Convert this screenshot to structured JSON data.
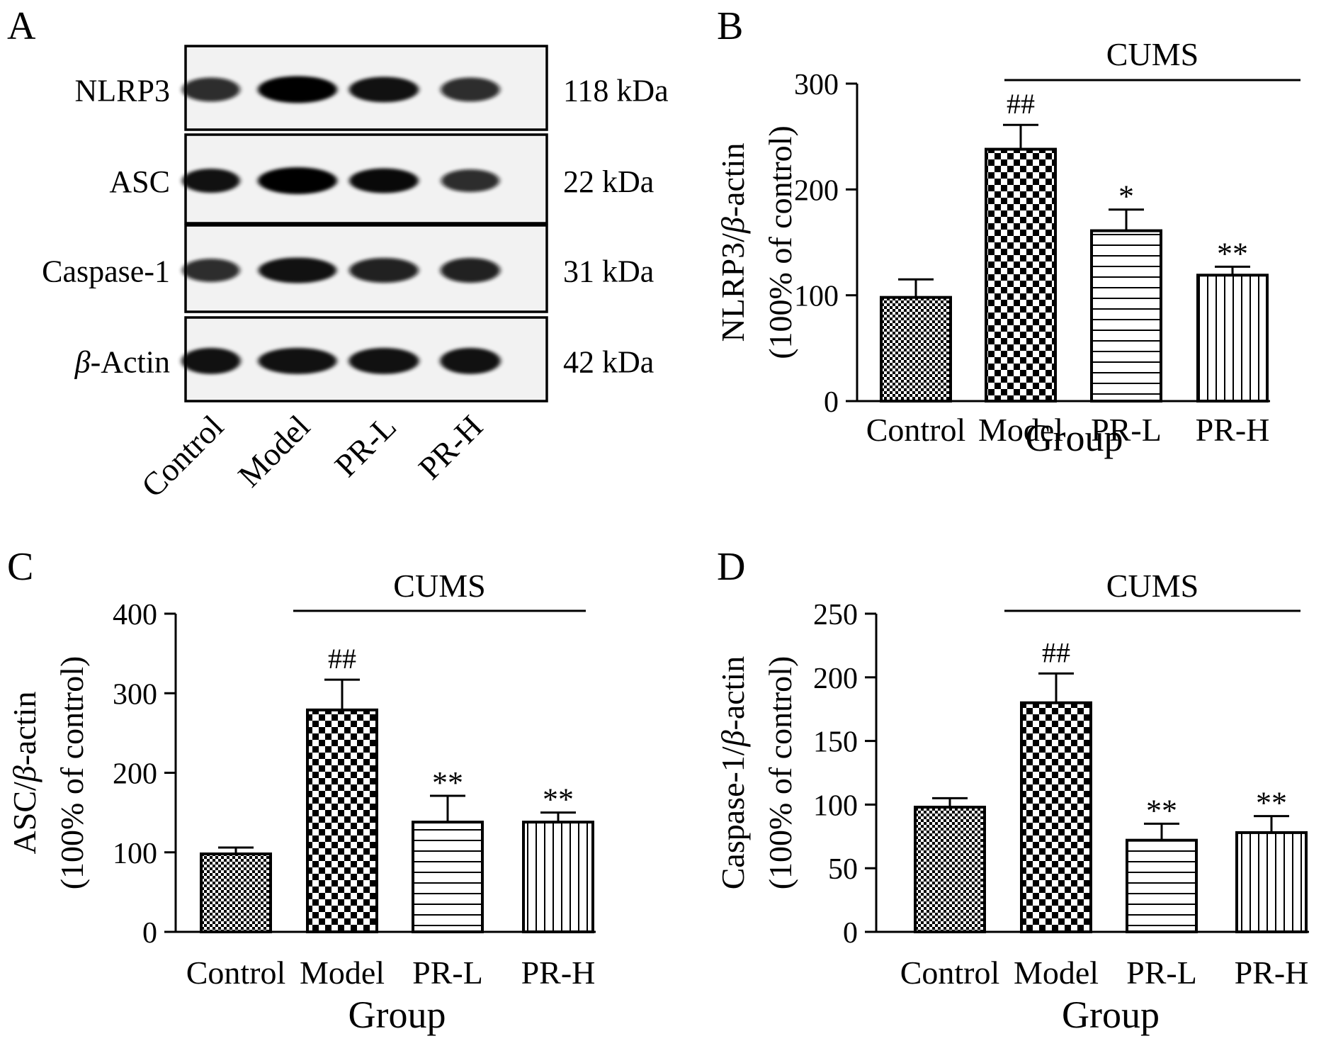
{
  "panels": {
    "A": {
      "letter": "A",
      "blots": [
        {
          "label_italic": "",
          "label": "NLRP3",
          "kda": "118 kDa",
          "intensity": [
            0.7,
            1.0,
            0.85,
            0.7
          ],
          "thickness": [
            0.8,
            1.0,
            0.9,
            0.8
          ]
        },
        {
          "label_italic": "",
          "label": "ASC",
          "kda": "22 kDa",
          "intensity": [
            0.85,
            1.0,
            0.9,
            0.7
          ],
          "thickness": [
            0.8,
            1.0,
            0.85,
            0.7
          ]
        },
        {
          "label_italic": "",
          "label": "Caspase-1",
          "kda": "31 kDa",
          "intensity": [
            0.7,
            0.85,
            0.8,
            0.8
          ],
          "thickness": [
            0.75,
            0.9,
            0.85,
            0.85
          ]
        },
        {
          "label_italic": "β",
          "label": "-Actin",
          "kda": "42 kDa",
          "intensity": [
            0.85,
            0.85,
            0.85,
            0.85
          ],
          "thickness": [
            0.95,
            0.95,
            0.95,
            0.95
          ]
        }
      ],
      "lanes": [
        "Control",
        "Model",
        "PR-L",
        "PR-H"
      ]
    }
  },
  "chart_data": [
    {
      "panel": "B",
      "type": "bar",
      "categories": [
        "Control",
        "Model",
        "PR-L",
        "PR-H"
      ],
      "values": [
        98,
        238,
        161,
        119
      ],
      "errors": [
        17,
        23,
        20,
        8
      ],
      "annotations": [
        "",
        "##",
        "*",
        "**"
      ],
      "bracket_label": "CUMS",
      "ylabel_prefix": "NLRP3/",
      "ylabel_italic": "β",
      "ylabel_suffix": "-actin",
      "ylabel_line2": "(100% of control)",
      "xlabel": "Group",
      "ylim": [
        0,
        300
      ],
      "yticks": [
        0,
        100,
        200,
        300
      ],
      "patterns": [
        "fine-check",
        "coarse-check",
        "horizontal-lines",
        "vertical-lines"
      ]
    },
    {
      "panel": "C",
      "type": "bar",
      "categories": [
        "Control",
        "Model",
        "PR-L",
        "PR-H"
      ],
      "values": [
        98,
        279,
        138,
        138
      ],
      "errors": [
        8,
        38,
        33,
        12
      ],
      "annotations": [
        "",
        "##",
        "**",
        "**"
      ],
      "bracket_label": "CUMS",
      "ylabel_prefix": "ASC/",
      "ylabel_italic": "β",
      "ylabel_suffix": "-actin",
      "ylabel_line2": "(100% of control)",
      "xlabel": "Group",
      "ylim": [
        0,
        400
      ],
      "yticks": [
        0,
        100,
        200,
        300,
        400
      ],
      "patterns": [
        "fine-check",
        "coarse-check",
        "horizontal-lines",
        "vertical-lines"
      ]
    },
    {
      "panel": "D",
      "type": "bar",
      "categories": [
        "Control",
        "Model",
        "PR-L",
        "PR-H"
      ],
      "values": [
        98,
        180,
        72,
        78
      ],
      "errors": [
        7,
        23,
        13,
        13
      ],
      "annotations": [
        "",
        "##",
        "**",
        "**"
      ],
      "bracket_label": "CUMS",
      "ylabel_prefix": "Caspase-1/",
      "ylabel_italic": "β",
      "ylabel_suffix": "-actin",
      "ylabel_line2": "(100% of control)",
      "xlabel": "Group",
      "ylim": [
        0,
        250
      ],
      "yticks": [
        0,
        50,
        100,
        150,
        200,
        250
      ],
      "patterns": [
        "fine-check",
        "coarse-check",
        "horizontal-lines",
        "vertical-lines"
      ]
    }
  ]
}
